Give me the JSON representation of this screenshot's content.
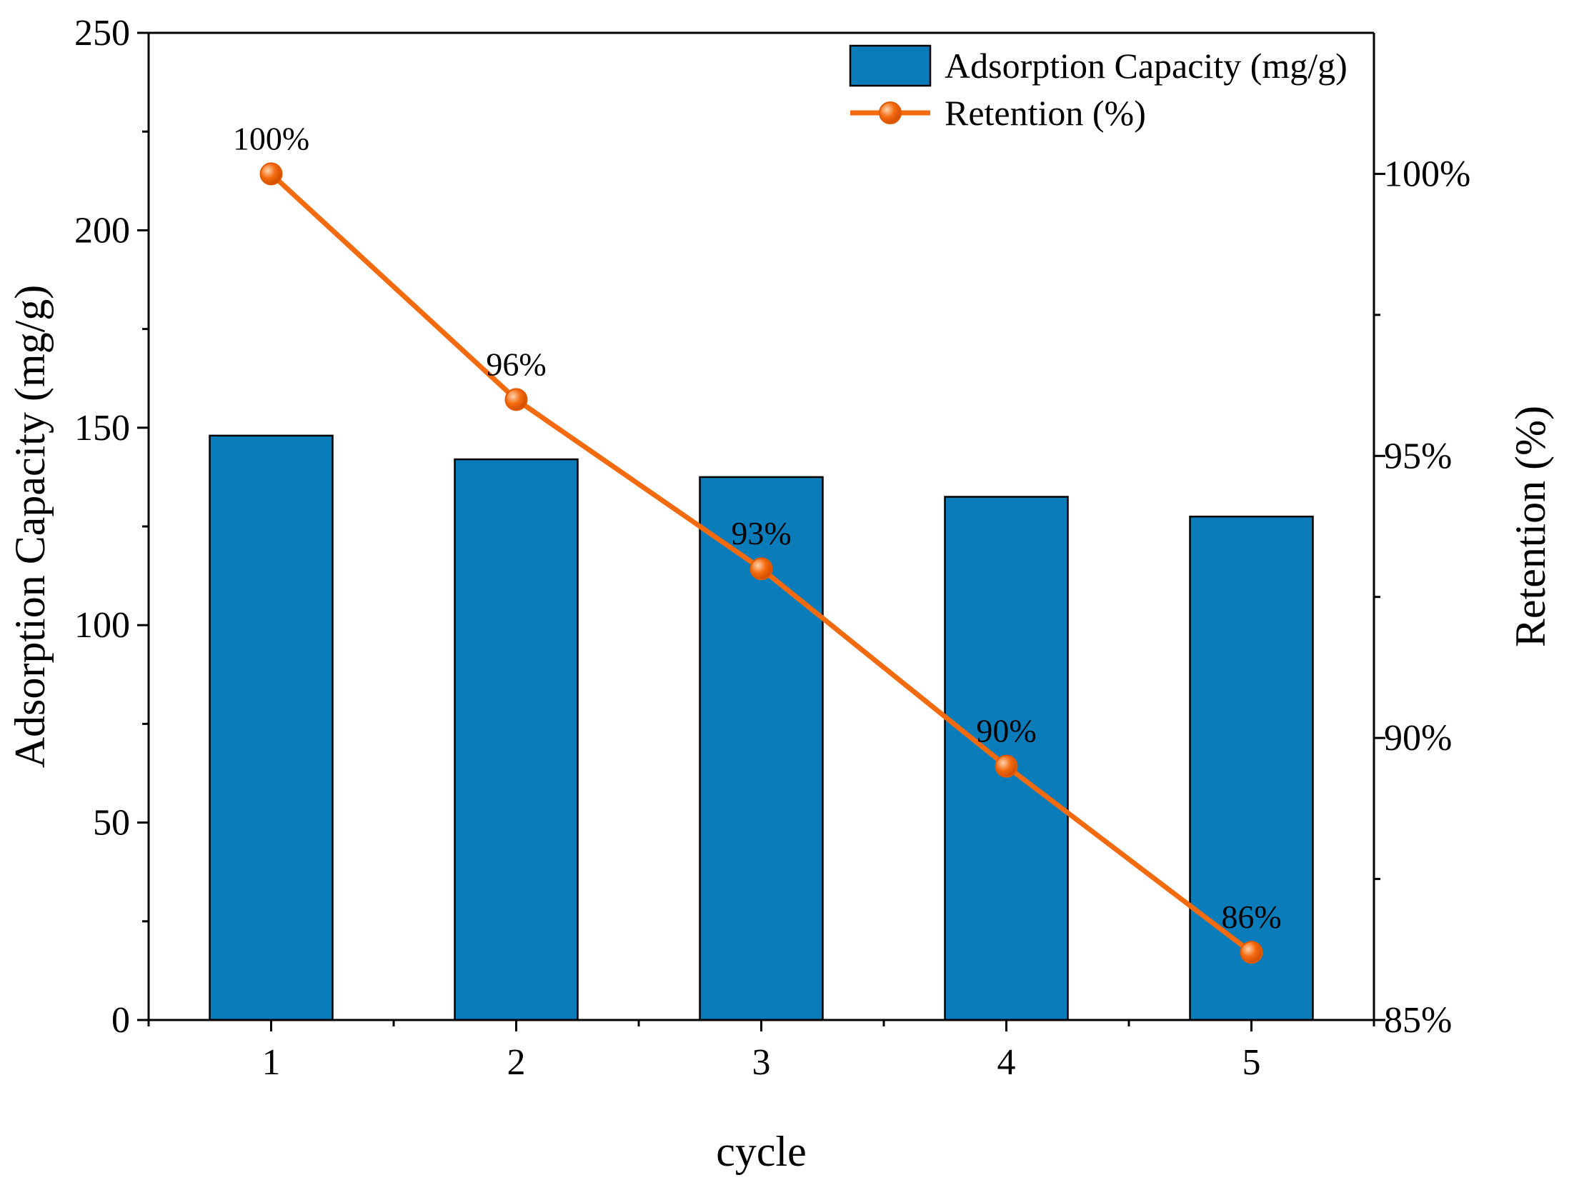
{
  "chart_data": {
    "type": "bar+line",
    "categories": [
      "1",
      "2",
      "3",
      "4",
      "5"
    ],
    "xlabel": "cycle",
    "series": [
      {
        "name": "Adsorption Capacity (mg/g)",
        "type": "bar",
        "axis": "left",
        "color": "#0b7cba",
        "values": [
          148,
          142,
          137.5,
          132.5,
          127.5
        ]
      },
      {
        "name": "Retention (%)",
        "type": "line",
        "axis": "right",
        "color": "#f46a0f",
        "values": [
          100,
          96,
          93,
          89.5,
          86.2
        ],
        "data_labels": [
          "100%",
          "96%",
          "93%",
          "90%",
          "86%"
        ]
      }
    ],
    "y_left": {
      "label": "Adsorption Capacity (mg/g)",
      "ylim": [
        0,
        250
      ],
      "ticks": [
        0,
        50,
        100,
        150,
        200,
        250
      ],
      "tick_labels": [
        "0",
        "50",
        "100",
        "150",
        "200",
        "250"
      ]
    },
    "y_right": {
      "label": "Retention (%)",
      "ylim": [
        85,
        102.5
      ],
      "ticks": [
        85,
        90,
        95,
        100
      ],
      "tick_labels": [
        "85%",
        "90%",
        "95%",
        "100%"
      ]
    },
    "legend_position": "top-right",
    "grid": false
  }
}
